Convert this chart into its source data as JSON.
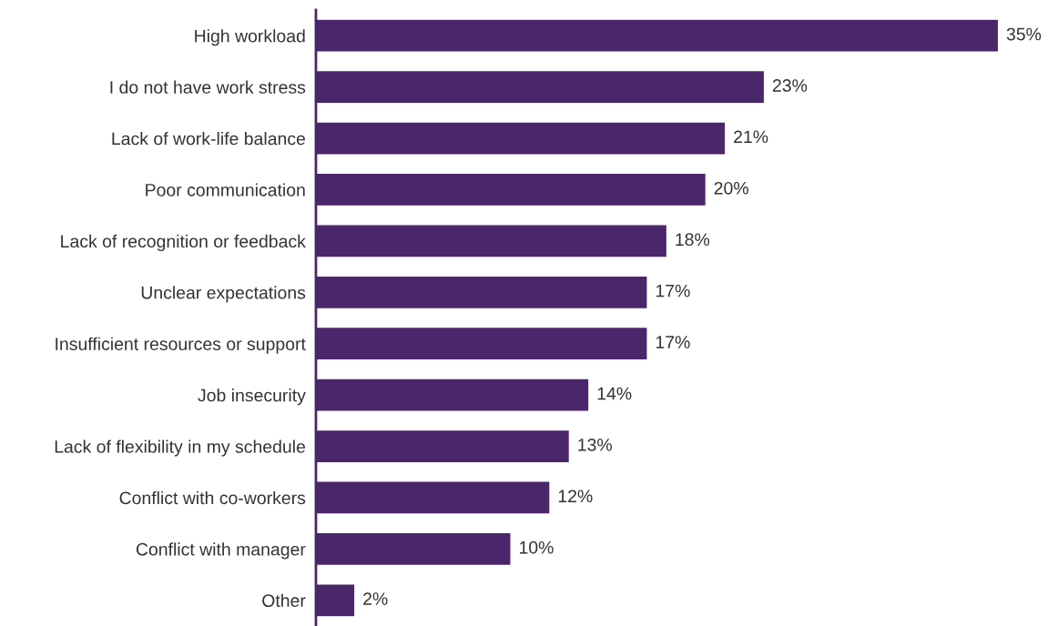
{
  "chart_data": {
    "type": "bar",
    "orientation": "horizontal",
    "categories": [
      "High workload",
      "I do not have work stress",
      "Lack of work-life balance",
      "Poor communication",
      "Lack of recognition or feedback",
      "Unclear expectations",
      "Insufficient resources or support",
      "Job insecurity",
      "Lack of flexibility in my schedule",
      "Conflict with co-workers",
      "Conflict with manager",
      "Other"
    ],
    "values": [
      35,
      23,
      21,
      20,
      18,
      17,
      17,
      14,
      13,
      12,
      10,
      2
    ],
    "value_labels": [
      "35%",
      "23%",
      "21%",
      "20%",
      "18%",
      "17%",
      "17%",
      "14%",
      "13%",
      "12%",
      "10%",
      "2%"
    ],
    "color": "#4a266a",
    "grid": false,
    "legend": false
  }
}
